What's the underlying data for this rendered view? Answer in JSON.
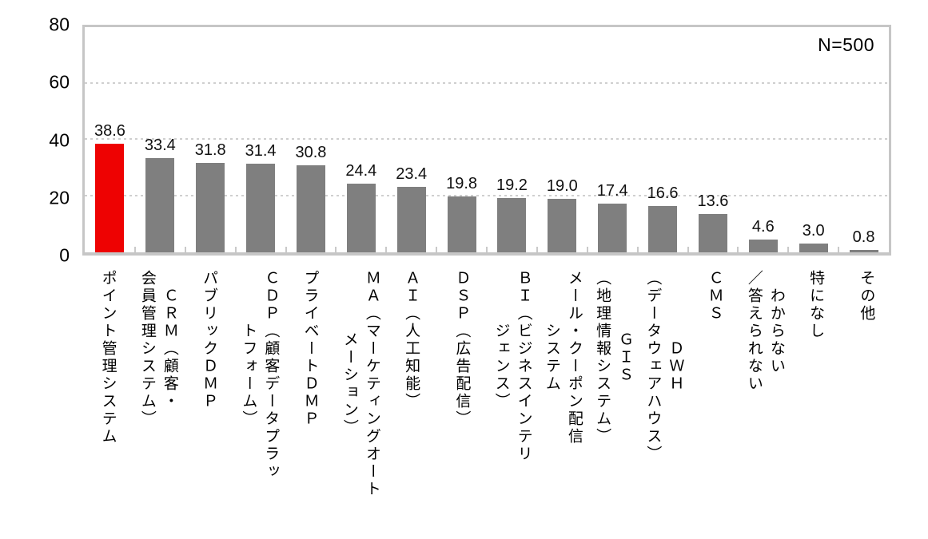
{
  "chart_data": {
    "type": "bar",
    "title": "",
    "annotation": "N=500",
    "categories": [
      "ポイント管理システム",
      "ＣＲＭ（顧客・\n会員管理システム）",
      "パブリックＤＭＰ",
      "ＣＤＰ（顧客データプラッ\nトフォーム）",
      "プライベートＤＭＰ",
      "ＭＡ（マーケティングオート\nメーション）",
      "ＡＩ（人工知能）",
      "ＤＳＰ（広告配信）",
      "ＢＩ（ビジネスインテリ\nジェンス）",
      "メール・クーポン配信\nシステム",
      "ＧＩＳ\n（地理情報システム）",
      "ＤＷＨ\n（データウェアハウス）",
      "ＣＭＳ",
      "わからない\n／答えられない",
      "特になし",
      "その他"
    ],
    "values": [
      38.6,
      33.4,
      31.8,
      31.4,
      30.8,
      24.4,
      23.4,
      19.8,
      19.2,
      19.0,
      17.4,
      16.6,
      13.6,
      4.6,
      3.0,
      0.8
    ],
    "values_display": [
      "38.6",
      "33.4",
      "31.8",
      "31.4",
      "30.8",
      "24.4",
      "23.4",
      "19.8",
      "19.2",
      "19.0",
      "17.4",
      "16.6",
      "13.6",
      "4.6",
      "3.0",
      "0.8"
    ],
    "xlabel": "",
    "ylabel": "",
    "ylim": [
      0,
      80
    ],
    "yticks": [
      0,
      20,
      40,
      60,
      80
    ],
    "gridlines_at": [
      20,
      40,
      60
    ],
    "grid": "horizontal-dashed",
    "legend": "none",
    "highlight_index": 0,
    "colors": {
      "bar": "#7f7f7f",
      "highlight": "#ee0202",
      "frame": "#c6c6c6",
      "gridline": "#cfcfcf",
      "text": "#000000"
    }
  }
}
